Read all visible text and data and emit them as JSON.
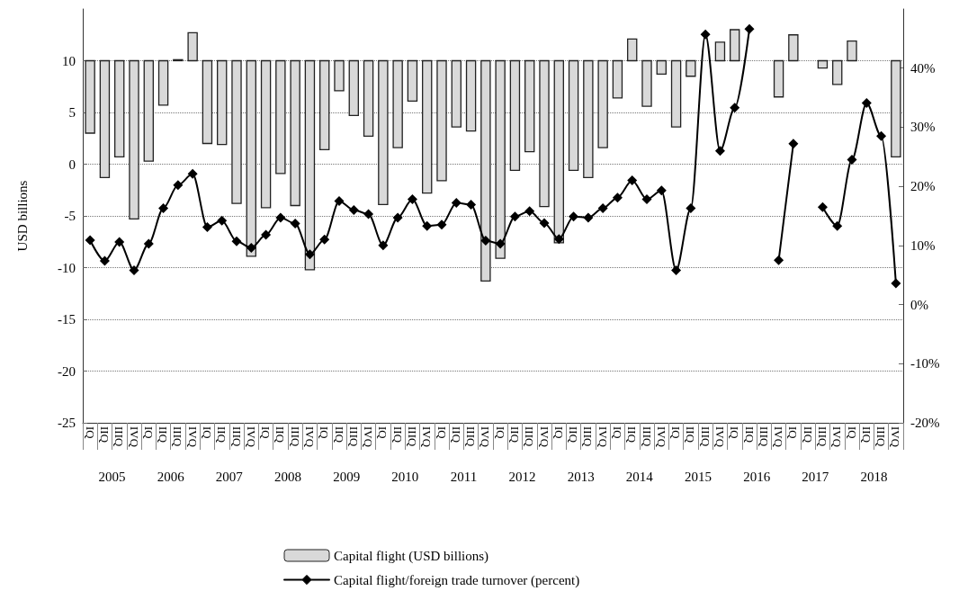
{
  "chart_data": {
    "type": "bar",
    "ylabel": "USD billions",
    "categories": [
      "IQ",
      "IIQ",
      "IIIQ",
      "IVQ",
      "IQ",
      "IIQ",
      "IIIQ",
      "IVQ",
      "IQ",
      "IIQ",
      "IIIQ",
      "IVQ",
      "IQ",
      "IIQ",
      "IIIQ",
      "IVQ",
      "IQ",
      "IIQ",
      "IIIQ",
      "IVQ",
      "IQ",
      "IIQ",
      "IIIQ",
      "IVQ",
      "IQ",
      "IIQ",
      "IIIQ",
      "IVQ",
      "IQ",
      "IIQ",
      "IIIQ",
      "IVQ",
      "IQ",
      "IIQ",
      "IIIQ",
      "IVQ",
      "IQ",
      "IIQ",
      "IIIQ",
      "IVQ",
      "IQ",
      "IIQ",
      "IIIQ",
      "IVQ",
      "IQ",
      "IIQ",
      "IIIQ",
      "IVQ",
      "IQ",
      "IIQ",
      "IIIQ",
      "IVQ",
      "IQ",
      "IIQ",
      "IIIQ",
      "IVQ"
    ],
    "series": [
      {
        "name": "Capital flight (USD billions)",
        "color": "#d9d9d9",
        "base": [
          10,
          10,
          10,
          10,
          10,
          10,
          10,
          10,
          10,
          10,
          10,
          10,
          10,
          10,
          10,
          10,
          10,
          10,
          10,
          10,
          10,
          10,
          10,
          10,
          10,
          10,
          10,
          10,
          10,
          10,
          10,
          10,
          10,
          10,
          10,
          10,
          10,
          10,
          10,
          10,
          10,
          10,
          null,
          10,
          10,
          null,
          null,
          10,
          10,
          null,
          10,
          10,
          10,
          null,
          null,
          10
        ],
        "values": [
          -7.0,
          -11.3,
          -9.3,
          -15.3,
          -9.7,
          -4.3,
          0.1,
          2.7,
          -8.0,
          -8.1,
          -13.8,
          -18.9,
          -14.2,
          -10.9,
          -14.0,
          -20.2,
          -8.6,
          -2.9,
          -5.3,
          -7.3,
          -13.9,
          -8.4,
          -3.9,
          -12.8,
          -11.6,
          -6.4,
          -6.8,
          -21.3,
          -19.1,
          -10.6,
          -8.8,
          -14.1,
          -17.6,
          -10.6,
          -11.3,
          -8.4,
          -3.6,
          2.1,
          -4.4,
          -1.3,
          -6.4,
          -1.5,
          null,
          1.8,
          3.0,
          null,
          null,
          -3.5,
          2.5,
          null,
          -0.7,
          -2.3,
          1.9,
          null,
          null,
          -9.3
        ]
      },
      {
        "name": "Capital flight/foreign trade turnover (percent)",
        "type": "line",
        "axis": "y2",
        "color": "#000000",
        "marker": "diamond",
        "line_style": "solid",
        "values": [
          10.9,
          7.4,
          10.6,
          5.8,
          10.3,
          16.3,
          20.2,
          22.1,
          13.1,
          14.2,
          10.7,
          9.6,
          11.8,
          14.7,
          13.7,
          8.5,
          11.0,
          17.5,
          16.0,
          15.3,
          10.0,
          14.7,
          17.8,
          13.3,
          13.5,
          17.2,
          16.9,
          10.8,
          10.3,
          14.9,
          15.8,
          13.8,
          11.1,
          14.9,
          14.7,
          16.3,
          18.1,
          21.0,
          17.8,
          19.3,
          5.8,
          16.3,
          45.7,
          26.0,
          33.3,
          46.6,
          null,
          7.5,
          27.2,
          null,
          16.5,
          13.3,
          24.5,
          34.1,
          28.5,
          3.6
        ]
      }
    ],
    "ylim": [
      -25,
      15
    ],
    "yticks": [
      -25,
      -20,
      -15,
      -10,
      -5,
      0,
      5,
      10
    ],
    "y2lim": [
      -20,
      50
    ],
    "y2ticks": [
      {
        "value": -20,
        "label": "-20%"
      },
      {
        "value": -10,
        "label": "-10%"
      },
      {
        "value": 0,
        "label": "0%"
      },
      {
        "value": 10,
        "label": "10%"
      },
      {
        "value": 20,
        "label": "20%"
      },
      {
        "value": 30,
        "label": "30%"
      },
      {
        "value": 40,
        "label": "40%"
      }
    ],
    "annotations": [
      "2005",
      "2006",
      "2007",
      "2008",
      "2009",
      "2010",
      "2011",
      "2012",
      "2013",
      "2014",
      "2015",
      "2016",
      "2017",
      "2018"
    ],
    "grid": "y",
    "legend": "bottom"
  }
}
